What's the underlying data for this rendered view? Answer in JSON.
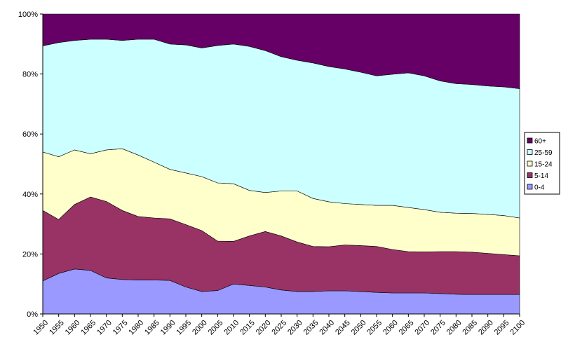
{
  "chart_data": {
    "type": "area",
    "stacked": "percent",
    "title": "",
    "xlabel": "",
    "ylabel": "",
    "ylim": [
      0,
      100
    ],
    "grid": false,
    "legend_position": "right",
    "y_ticks": [
      "0%",
      "20%",
      "40%",
      "60%",
      "80%",
      "100%"
    ],
    "x": [
      "1950",
      "1955",
      "1960",
      "1965",
      "1970",
      "1975",
      "1980",
      "1985",
      "1990",
      "1995",
      "2000",
      "2005",
      "2010",
      "2015",
      "2020",
      "2025",
      "2030",
      "2035",
      "2040",
      "2045",
      "2050",
      "2055",
      "2060",
      "2065",
      "2070",
      "2075",
      "2080",
      "2085",
      "2090",
      "2095",
      "2100"
    ],
    "series": [
      {
        "name": "0-4",
        "color": "#9999ff",
        "values": [
          11.0,
          13.5,
          15.0,
          14.5,
          12.0,
          11.5,
          11.3,
          11.3,
          11.2,
          9.0,
          7.5,
          7.8,
          10.0,
          9.5,
          9.0,
          8.0,
          7.5,
          7.5,
          7.7,
          7.7,
          7.5,
          7.2,
          7.0,
          7.0,
          7.0,
          6.8,
          6.6,
          6.5,
          6.5,
          6.5,
          6.5
        ]
      },
      {
        "name": "5-14",
        "color": "#993366",
        "values": [
          23.5,
          18.0,
          21.5,
          24.5,
          25.5,
          23.0,
          21.2,
          20.7,
          20.5,
          20.8,
          20.3,
          16.5,
          14.2,
          16.5,
          18.5,
          18.0,
          16.5,
          15.0,
          14.7,
          15.3,
          15.3,
          15.3,
          14.5,
          13.8,
          13.7,
          14.0,
          14.2,
          14.1,
          13.7,
          13.3,
          12.9
        ]
      },
      {
        "name": "15-24",
        "color": "#ffffcc",
        "values": [
          19.5,
          20.9,
          18.2,
          14.4,
          17.2,
          20.6,
          20.5,
          18.6,
          16.5,
          17.2,
          18.0,
          19.4,
          19.2,
          15.2,
          13.0,
          15.0,
          17.0,
          16.0,
          15.0,
          13.8,
          13.7,
          13.7,
          14.7,
          14.7,
          14.1,
          13.1,
          12.8,
          12.9,
          13.0,
          13.0,
          12.6
        ]
      },
      {
        "name": "25-59",
        "color": "#ccffff",
        "values": [
          35.4,
          38.1,
          36.5,
          38.2,
          36.9,
          36.1,
          38.6,
          41.0,
          41.8,
          42.7,
          42.9,
          45.8,
          46.6,
          48.0,
          47.3,
          44.8,
          43.6,
          45.2,
          45.1,
          44.9,
          44.1,
          43.2,
          43.7,
          44.9,
          44.6,
          43.8,
          43.2,
          43.0,
          42.8,
          42.9,
          43.1
        ]
      },
      {
        "name": "60+",
        "color": "#660066",
        "values": [
          10.6,
          9.5,
          8.8,
          8.4,
          8.4,
          8.8,
          8.4,
          8.4,
          10.0,
          10.3,
          11.3,
          10.5,
          10.0,
          10.8,
          12.2,
          14.2,
          15.4,
          16.3,
          17.5,
          18.3,
          19.4,
          20.6,
          20.1,
          19.6,
          20.6,
          22.3,
          23.2,
          23.5,
          24.0,
          24.3,
          24.9
        ]
      }
    ]
  }
}
